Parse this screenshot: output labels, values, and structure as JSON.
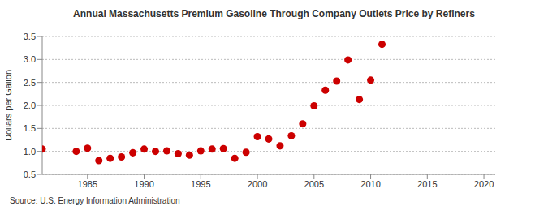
{
  "chart_data": {
    "type": "scatter",
    "title": "Annual Massachusetts Premium Gasoline Through Company Outlets Price by Refiners",
    "y_label": "Dollars per Gallon",
    "source": "Source: U.S. Energy Information Administration",
    "x": [
      1981,
      1984,
      1985,
      1986,
      1987,
      1988,
      1989,
      1990,
      1991,
      1992,
      1993,
      1994,
      1995,
      1996,
      1997,
      1998,
      1999,
      2000,
      2001,
      2002,
      2003,
      2004,
      2005,
      2006,
      2007,
      2008,
      2009,
      2010,
      2011
    ],
    "values": [
      1.05,
      1.0,
      1.07,
      0.8,
      0.85,
      0.88,
      0.97,
      1.05,
      1.0,
      1.01,
      0.95,
      0.92,
      1.01,
      1.05,
      1.06,
      0.85,
      0.98,
      1.32,
      1.27,
      1.12,
      1.34,
      1.6,
      1.99,
      2.33,
      2.53,
      2.99,
      2.13,
      2.55,
      3.33
    ],
    "color": "#cc0000",
    "marker": "circle",
    "xlim": [
      1981,
      2021
    ],
    "xticks": [
      1985,
      1990,
      1995,
      2000,
      2005,
      2010,
      2015,
      2020
    ],
    "ylim": [
      0.5,
      3.5
    ],
    "yticks": [
      0.5,
      {
        "value": 1.0,
        "label": "1.0"
      },
      1.5,
      {
        "value": 2.0,
        "label": "2.0"
      },
      2.5,
      {
        "value": 3.0,
        "label": "3.0"
      },
      3.5
    ],
    "grid": true
  }
}
